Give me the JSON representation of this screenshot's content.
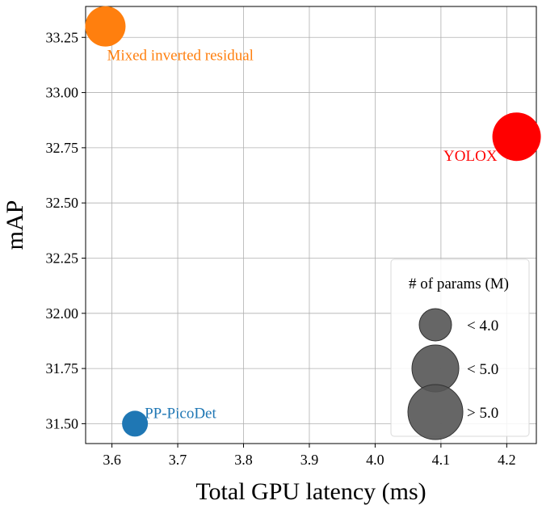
{
  "chart_data": {
    "type": "scatter",
    "title": "",
    "xlabel": "Total GPU latency (ms)",
    "ylabel": "mAP",
    "xlim": [
      3.56,
      4.245
    ],
    "ylim": [
      31.41,
      33.39
    ],
    "x_ticks": [
      3.6,
      3.7,
      3.8,
      3.9,
      4.0,
      4.1,
      4.2
    ],
    "x_tick_labels": [
      "3.6",
      "3.7",
      "3.8",
      "3.9",
      "4.0",
      "4.1",
      "4.2"
    ],
    "y_ticks": [
      31.5,
      31.75,
      32.0,
      32.25,
      32.5,
      32.75,
      33.0,
      33.25
    ],
    "y_tick_labels": [
      "31.50",
      "31.75",
      "32.00",
      "32.25",
      "32.50",
      "32.75",
      "33.00",
      "33.25"
    ],
    "grid": true,
    "points": [
      {
        "label": "Mixed inverted residual",
        "x": 3.59,
        "y": 33.3,
        "size_class": "< 5.0",
        "color": "#ff7f0e",
        "label_pos": "below-right"
      },
      {
        "label": "YOLOX",
        "x": 4.215,
        "y": 32.8,
        "size_class": "> 5.0",
        "color": "#ff0000",
        "label_pos": "below-left"
      },
      {
        "label": "PP-PicoDet",
        "x": 3.635,
        "y": 31.5,
        "size_class": "< 4.0",
        "color": "#1f77b4",
        "label_pos": "above-right"
      }
    ],
    "legend": {
      "title": "# of params (M)",
      "placement": "lower-right",
      "color": "#555555",
      "entries": [
        "< 4.0",
        "< 5.0",
        "> 5.0"
      ]
    }
  }
}
